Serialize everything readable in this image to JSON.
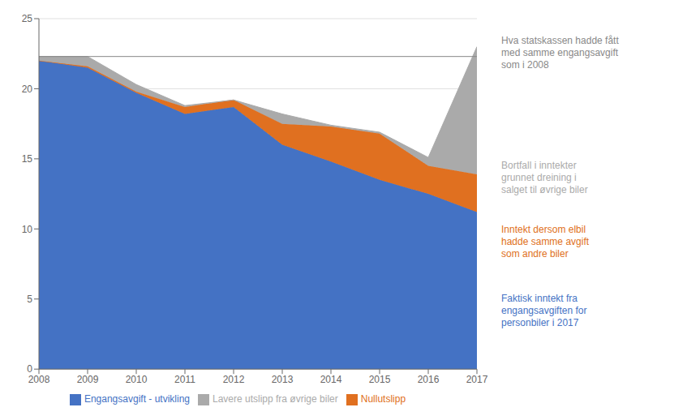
{
  "chart_data": {
    "type": "area",
    "stacked": true,
    "x": [
      2008,
      2009,
      2010,
      2011,
      2012,
      2013,
      2014,
      2015,
      2016,
      2017
    ],
    "series": [
      {
        "name": "Engangsavgift - utvikling",
        "color": "#4472C4",
        "values": [
          22.0,
          21.5,
          19.7,
          18.2,
          18.7,
          16.0,
          14.8,
          13.5,
          12.5,
          11.2
        ]
      },
      {
        "name": "Nullutslipp",
        "color": "#E07020",
        "values": [
          0.0,
          0.1,
          0.1,
          0.5,
          0.5,
          1.5,
          2.5,
          3.3,
          2.0,
          2.7
        ]
      },
      {
        "name": "Lavere utslipp fra øvrige biler",
        "color": "#AAAAAA",
        "values": [
          0.3,
          0.7,
          0.5,
          0.1,
          0.0,
          0.7,
          0.1,
          0.1,
          0.6,
          9.1
        ]
      }
    ],
    "reference_line": {
      "value": 22.3,
      "color": "#888888"
    },
    "xlim": [
      2008,
      2017
    ],
    "xticks": [
      2008,
      2009,
      2010,
      2011,
      2012,
      2013,
      2014,
      2015,
      2016,
      2017
    ],
    "ylim": [
      0,
      25
    ],
    "yticks": [
      0,
      5,
      10,
      15,
      20,
      25
    ],
    "grid": true,
    "legend": "bottom",
    "annotations": [
      {
        "text": "Hva statskassen hadde fått\nmed samme engangsavgift\nsom i 2008",
        "color": "#888888"
      },
      {
        "text": "Bortfall i inntekter\ngrunnet dreining i\nsalget til øvrige biler",
        "color": "#AAAAAA"
      },
      {
        "text": "Inntekt dersom elbil\nhadde samme avgift\nsom andre biler",
        "color": "#E07020"
      },
      {
        "text": "Faktisk inntekt fra\nengangsavgiften for\npersonbiler i 2017",
        "color": "#4472C4"
      }
    ]
  }
}
